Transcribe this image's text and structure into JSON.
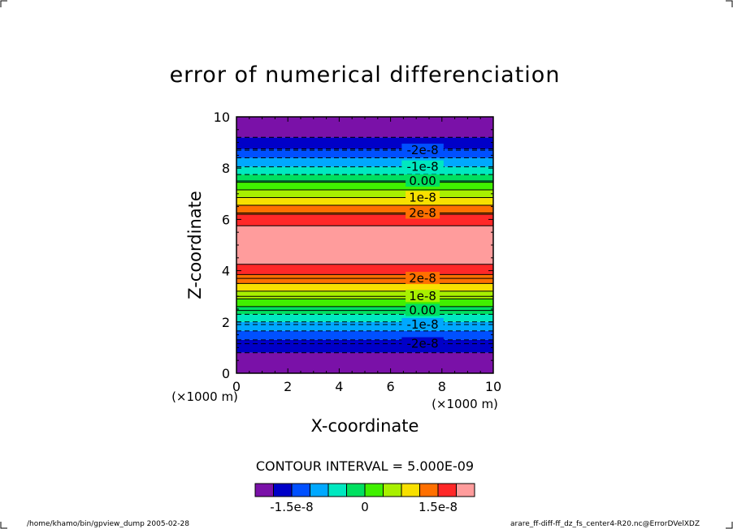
{
  "chart_data": {
    "type": "heatmap",
    "title": "error of numerical differenciation",
    "xlabel": "X-coordinate",
    "ylabel": "Z-coordinate",
    "x_unit": "(×1000 m)",
    "y_unit": "(×1000 m)",
    "xlim": [
      0,
      10
    ],
    "ylim": [
      0,
      10
    ],
    "x_ticks": [
      "0",
      "2",
      "4",
      "6",
      "8",
      "10"
    ],
    "y_ticks": [
      "0",
      "2",
      "4",
      "6",
      "8",
      "10"
    ],
    "grid": false,
    "bands": [
      {
        "z0": 0.0,
        "z1": 0.8,
        "color": "#7a11a8"
      },
      {
        "z0": 0.8,
        "z1": 1.3,
        "color": "#0000c8"
      },
      {
        "z0": 1.3,
        "z1": 1.65,
        "color": "#0050ff"
      },
      {
        "z0": 1.65,
        "z1": 2.0,
        "color": "#00a8ff"
      },
      {
        "z0": 2.0,
        "z1": 2.3,
        "color": "#00e8c0"
      },
      {
        "z0": 2.3,
        "z1": 2.6,
        "color": "#00e060"
      },
      {
        "z0": 2.6,
        "z1": 2.9,
        "color": "#40f000"
      },
      {
        "z0": 2.9,
        "z1": 3.2,
        "color": "#a8f000"
      },
      {
        "z0": 3.2,
        "z1": 3.5,
        "color": "#f8e000"
      },
      {
        "z0": 3.5,
        "z1": 3.85,
        "color": "#ff7000"
      },
      {
        "z0": 3.85,
        "z1": 4.25,
        "color": "#ff2828"
      },
      {
        "z0": 4.25,
        "z1": 5.75,
        "color": "#ff9c9c"
      },
      {
        "z0": 5.75,
        "z1": 6.2,
        "color": "#ff2828"
      },
      {
        "z0": 6.2,
        "z1": 6.55,
        "color": "#ff7000"
      },
      {
        "z0": 6.55,
        "z1": 6.85,
        "color": "#f8e000"
      },
      {
        "z0": 6.85,
        "z1": 7.15,
        "color": "#a8f000"
      },
      {
        "z0": 7.15,
        "z1": 7.45,
        "color": "#40f000"
      },
      {
        "z0": 7.45,
        "z1": 7.75,
        "color": "#00e060"
      },
      {
        "z0": 7.75,
        "z1": 8.05,
        "color": "#00e8c0"
      },
      {
        "z0": 8.05,
        "z1": 8.4,
        "color": "#00a8ff"
      },
      {
        "z0": 8.4,
        "z1": 8.75,
        "color": "#0050ff"
      },
      {
        "z0": 8.75,
        "z1": 9.2,
        "color": "#0000c8"
      },
      {
        "z0": 9.2,
        "z1": 10.0,
        "color": "#7a11a8"
      }
    ],
    "contours": [
      {
        "z": 0.8,
        "dash": true,
        "label": ""
      },
      {
        "z": 1.15,
        "dash": true,
        "label": "-2e-8"
      },
      {
        "z": 1.3,
        "dash": true,
        "label": ""
      },
      {
        "z": 1.65,
        "dash": true,
        "label": ""
      },
      {
        "z": 1.9,
        "dash": true,
        "label": "-1e-8"
      },
      {
        "z": 2.0,
        "dash": true,
        "label": ""
      },
      {
        "z": 2.3,
        "dash": true,
        "label": ""
      },
      {
        "z": 2.45,
        "dash": false,
        "label": "0.00"
      },
      {
        "z": 2.6,
        "dash": false,
        "label": ""
      },
      {
        "z": 2.9,
        "dash": false,
        "label": ""
      },
      {
        "z": 3.0,
        "dash": false,
        "label": "1e-8"
      },
      {
        "z": 3.2,
        "dash": false,
        "label": ""
      },
      {
        "z": 3.5,
        "dash": false,
        "label": ""
      },
      {
        "z": 3.7,
        "dash": false,
        "label": "2e-8"
      },
      {
        "z": 3.85,
        "dash": false,
        "label": ""
      },
      {
        "z": 4.25,
        "dash": false,
        "label": ""
      },
      {
        "z": 5.75,
        "dash": false,
        "label": ""
      },
      {
        "z": 6.2,
        "dash": false,
        "label": ""
      },
      {
        "z": 6.25,
        "dash": false,
        "label": "2e-8"
      },
      {
        "z": 6.55,
        "dash": false,
        "label": ""
      },
      {
        "z": 6.85,
        "dash": false,
        "label": "1e-8"
      },
      {
        "z": 7.15,
        "dash": false,
        "label": ""
      },
      {
        "z": 7.45,
        "dash": false,
        "label": ""
      },
      {
        "z": 7.5,
        "dash": false,
        "label": "0.00"
      },
      {
        "z": 7.75,
        "dash": true,
        "label": ""
      },
      {
        "z": 8.05,
        "dash": true,
        "label": "-1e-8"
      },
      {
        "z": 8.4,
        "dash": true,
        "label": ""
      },
      {
        "z": 8.7,
        "dash": true,
        "label": "-2e-8"
      },
      {
        "z": 8.75,
        "dash": true,
        "label": ""
      },
      {
        "z": 9.2,
        "dash": true,
        "label": ""
      }
    ],
    "contour_interval_text": "CONTOUR INTERVAL = 5.000E-09",
    "colorbar": {
      "colors": [
        "#7a11a8",
        "#0000c8",
        "#0050ff",
        "#00a8ff",
        "#00e8c0",
        "#00e060",
        "#40f000",
        "#a8f000",
        "#f8e000",
        "#ff7000",
        "#ff2828",
        "#ff9c9c"
      ],
      "tick_labels": [
        "-1.5e-8",
        "0",
        "1.5e-8"
      ],
      "tick_positions": [
        2,
        6,
        10
      ]
    }
  },
  "footer": {
    "left": "/home/khamo/bin/gpview_dump  2005-02-28",
    "right": "arare_ff-diff-ff_dz_fs_center4-R20.nc@ErrorDVelXDZ"
  }
}
